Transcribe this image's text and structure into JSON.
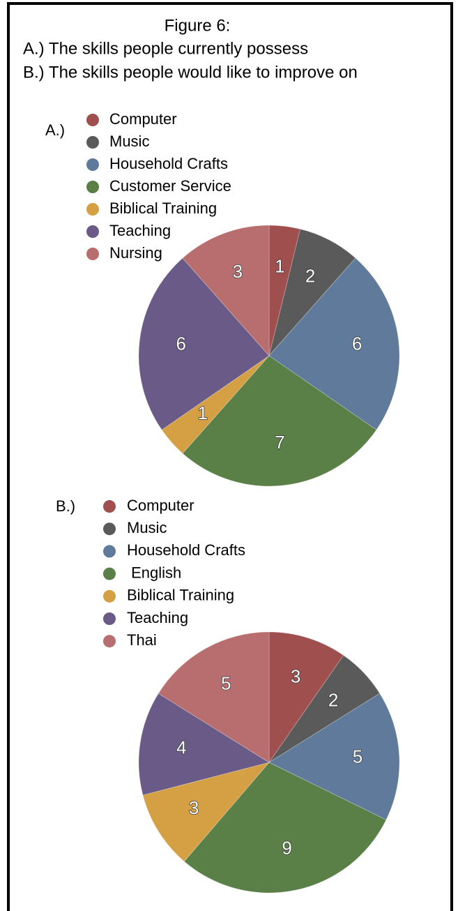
{
  "header": {
    "title": "Figure 6:",
    "lines": [
      "A.) The skills people currently possess",
      "B.) The skills people would like to improve on"
    ]
  },
  "chart_data": [
    {
      "type": "pie",
      "title": "A.)",
      "categories": [
        "Computer",
        "Music",
        "Household Crafts",
        "Customer Service",
        "Biblical Training",
        "Teaching",
        "Nursing"
      ],
      "values": [
        1,
        2,
        6,
        7,
        1,
        6,
        3
      ],
      "colors": [
        "#a04f4f",
        "#5a5a5a",
        "#5f7a9a",
        "#5a8048",
        "#d4a043",
        "#6a5a88",
        "#b86e6e"
      ]
    },
    {
      "type": "pie",
      "title": "B.)",
      "categories": [
        "Computer",
        "Music",
        "Household Crafts",
        " English",
        "Biblical Training",
        "Teaching",
        "Thai"
      ],
      "values": [
        3,
        2,
        5,
        9,
        3,
        4,
        5
      ],
      "colors": [
        "#a04f4f",
        "#5a5a5a",
        "#5f7a9a",
        "#5a8048",
        "#d4a043",
        "#6a5a88",
        "#b86e6e"
      ]
    }
  ]
}
